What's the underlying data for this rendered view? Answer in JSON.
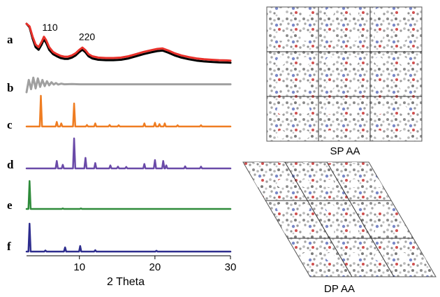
{
  "chart_data": {
    "type": "line",
    "xlabel": "2 Theta",
    "xlim": [
      3,
      30
    ],
    "xticks": [
      10,
      20,
      30
    ],
    "panels": [
      {
        "letter": "a",
        "series": [
          {
            "color": "#000000",
            "x": [
              3.0,
              3.4,
              3.8,
              4.2,
              4.6,
              5.0,
              5.3,
              5.6,
              6.0,
              6.5,
              7.0,
              7.5,
              8.0,
              8.5,
              9.0,
              9.5,
              10.0,
              10.4,
              10.8,
              11.2,
              11.7,
              12.5,
              13.5,
              14.5,
              15.5,
              16.5,
              17.5,
              18.5,
              19.5,
              20.3,
              21.0,
              21.8,
              22.6,
              23.5,
              24.5,
              25.5,
              26.5,
              27.5,
              28.5,
              29.5,
              30.0
            ],
            "y": [
              1.0,
              0.92,
              0.66,
              0.46,
              0.4,
              0.52,
              0.64,
              0.56,
              0.4,
              0.3,
              0.25,
              0.21,
              0.19,
              0.19,
              0.22,
              0.27,
              0.35,
              0.4,
              0.34,
              0.25,
              0.2,
              0.17,
              0.16,
              0.16,
              0.17,
              0.2,
              0.25,
              0.3,
              0.34,
              0.37,
              0.38,
              0.33,
              0.27,
              0.22,
              0.18,
              0.15,
              0.13,
              0.12,
              0.11,
              0.105,
              0.1
            ]
          },
          {
            "color": "#e8302a",
            "x": [
              3.0,
              3.4,
              3.8,
              4.2,
              4.6,
              5.0,
              5.3,
              5.6,
              6.0,
              6.5,
              7.0,
              7.5,
              8.0,
              8.5,
              9.0,
              9.5,
              10.0,
              10.4,
              10.8,
              11.2,
              11.7,
              12.5,
              13.5,
              14.5,
              15.5,
              16.5,
              17.5,
              18.5,
              19.5,
              20.3,
              21.0,
              21.8,
              22.6,
              23.5,
              24.5,
              25.5,
              26.5,
              27.5,
              28.5,
              29.5,
              30.0
            ],
            "y": [
              1.0,
              0.94,
              0.7,
              0.52,
              0.46,
              0.58,
              0.7,
              0.62,
              0.46,
              0.35,
              0.3,
              0.26,
              0.24,
              0.24,
              0.27,
              0.32,
              0.4,
              0.45,
              0.39,
              0.3,
              0.25,
              0.22,
              0.21,
              0.21,
              0.22,
              0.25,
              0.3,
              0.35,
              0.39,
              0.42,
              0.43,
              0.38,
              0.32,
              0.27,
              0.23,
              0.2,
              0.18,
              0.17,
              0.16,
              0.155,
              0.15
            ]
          }
        ],
        "peak_labels": [
          {
            "text": "110",
            "x": 6.1,
            "y": 0.84
          },
          {
            "text": "220",
            "x": 11.0,
            "y": 0.62
          }
        ]
      },
      {
        "letter": "b",
        "series": [
          {
            "color": "#a0a0a0",
            "x": [
              3.0,
              3.3,
              3.6,
              3.9,
              4.2,
              4.5,
              4.8,
              5.1,
              5.4,
              5.7,
              6.0,
              6.3,
              6.6,
              6.9,
              7.2,
              7.6,
              8.0,
              9.0,
              10.0,
              12.0,
              14.0,
              16.0,
              18.0,
              20.0,
              22.0,
              24.0,
              26.0,
              28.0,
              30.0
            ],
            "y": [
              0.0,
              0.8,
              0.2,
              0.95,
              0.25,
              0.9,
              0.35,
              0.8,
              0.4,
              0.72,
              0.45,
              0.65,
              0.5,
              0.6,
              0.5,
              0.56,
              0.52,
              0.53,
              0.52,
              0.52,
              0.52,
              0.52,
              0.52,
              0.52,
              0.52,
              0.52,
              0.52,
              0.52,
              0.52
            ]
          }
        ]
      },
      {
        "letter": "c",
        "series": [
          {
            "color": "#ef7d22",
            "peaks": [
              [
                4.9,
                1.0
              ],
              [
                7.0,
                0.15
              ],
              [
                7.6,
                0.1
              ],
              [
                9.3,
                0.75
              ],
              [
                11.0,
                0.05
              ],
              [
                12.1,
                0.1
              ],
              [
                14.0,
                0.05
              ],
              [
                15.2,
                0.04
              ],
              [
                18.6,
                0.1
              ],
              [
                20.0,
                0.12
              ],
              [
                20.6,
                0.08
              ],
              [
                21.3,
                0.1
              ],
              [
                23.0,
                0.04
              ],
              [
                26.1,
                0.04
              ]
            ]
          }
        ]
      },
      {
        "letter": "d",
        "series": [
          {
            "color": "#6a4aa8",
            "peaks": [
              [
                7.0,
                0.25
              ],
              [
                7.8,
                0.12
              ],
              [
                9.3,
                1.0
              ],
              [
                10.8,
                0.35
              ],
              [
                12.1,
                0.18
              ],
              [
                14.1,
                0.1
              ],
              [
                15.1,
                0.06
              ],
              [
                16.2,
                0.05
              ],
              [
                18.6,
                0.15
              ],
              [
                20.0,
                0.28
              ],
              [
                21.1,
                0.25
              ],
              [
                21.5,
                0.1
              ],
              [
                24.0,
                0.07
              ],
              [
                26.1,
                0.06
              ]
            ]
          }
        ]
      },
      {
        "letter": "e",
        "series": [
          {
            "color": "#2e8b3a",
            "peaks": [
              [
                3.4,
                1.0
              ],
              [
                7.8,
                0.02
              ],
              [
                10.2,
                0.02
              ]
            ]
          }
        ]
      },
      {
        "letter": "f",
        "series": [
          {
            "color": "#2e2d8e",
            "peaks": [
              [
                3.4,
                1.0
              ],
              [
                5.5,
                0.04
              ],
              [
                8.1,
                0.15
              ],
              [
                10.1,
                0.2
              ],
              [
                12.1,
                0.05
              ],
              [
                20.2,
                0.03
              ]
            ]
          }
        ]
      }
    ]
  },
  "structures": [
    {
      "caption": "SP AA"
    },
    {
      "caption": "DP AA"
    }
  ]
}
